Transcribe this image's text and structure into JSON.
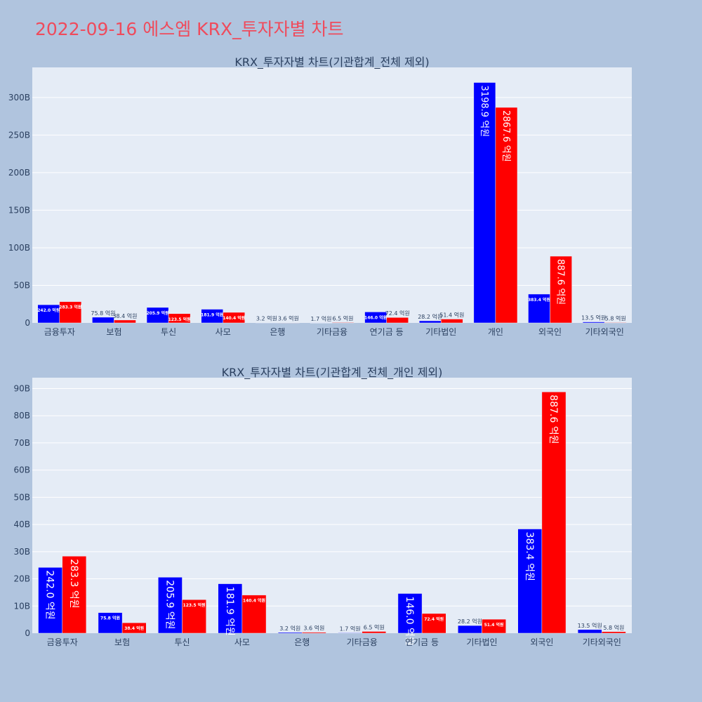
{
  "page": {
    "title": "2022-09-16 에스엠 KRX_투자자별 차트"
  },
  "chart_data": [
    {
      "type": "bar",
      "title": "KRX_투자자별 차트(기관합계_전체 제외)",
      "categories": [
        "금융투자",
        "보험",
        "투신",
        "사모",
        "은행",
        "기타금융",
        "연기금 등",
        "기타법인",
        "개인",
        "외국인",
        "기타외국인"
      ],
      "series": [
        {
          "color": "#0000ff",
          "values": [
            24.2,
            7.58,
            20.59,
            18.19,
            0.32,
            0.17,
            14.6,
            2.82,
            319.89,
            38.34,
            1.35
          ]
        },
        {
          "color": "#ff0000",
          "values": [
            28.33,
            3.84,
            12.35,
            14.04,
            0.36,
            0.65,
            7.24,
            5.14,
            286.76,
            88.76,
            0.58
          ]
        }
      ],
      "labels": [
        [
          "242.0 억원",
          "75.8 억원",
          "205.9 억원",
          "181.9 억원",
          "3.2 억원",
          "1.7 억원",
          "146.0 억원",
          "28.2 억원",
          "3198.9 억원",
          "383.4 억원",
          "13.5 억원"
        ],
        [
          "283.3 억원",
          "38.4 억원",
          "123.5 억원",
          "140.4 억원",
          "3.6 억원",
          "6.5 억원",
          "72.4 억원",
          "51.4 억원",
          "2867.6 억원",
          "887.6 억원",
          "5.8 억원"
        ]
      ],
      "ylim": [
        0,
        340
      ],
      "yticks": [
        0,
        50,
        100,
        150,
        200,
        250,
        300
      ],
      "ytick_labels": [
        "0",
        "50B",
        "100B",
        "150B",
        "200B",
        "250B",
        "300B"
      ],
      "grid": true
    },
    {
      "type": "bar",
      "title": "KRX_투자자별 차트(기관합계_전체_개인 제외)",
      "categories": [
        "금융투자",
        "보험",
        "투신",
        "사모",
        "은행",
        "기타금융",
        "연기금 등",
        "기타법인",
        "외국인",
        "기타외국인"
      ],
      "series": [
        {
          "color": "#0000ff",
          "values": [
            24.2,
            7.58,
            20.59,
            18.19,
            0.32,
            0.17,
            14.6,
            2.82,
            38.34,
            1.35
          ]
        },
        {
          "color": "#ff0000",
          "values": [
            28.33,
            3.84,
            12.35,
            14.04,
            0.36,
            0.65,
            7.24,
            5.14,
            88.76,
            0.58
          ]
        }
      ],
      "labels": [
        [
          "242.0 억원",
          "75.8 억원",
          "205.9 억원",
          "181.9 억원",
          "3.2 억원",
          "1.7 억원",
          "146.0 억원",
          "28.2 억원",
          "383.4 억원",
          "13.5 억원"
        ],
        [
          "283.3 억원",
          "38.4 억원",
          "123.5 억원",
          "140.4 억원",
          "3.6 억원",
          "6.5 억원",
          "72.4 억원",
          "51.4 억원",
          "887.6 억원",
          "5.8 억원"
        ]
      ],
      "ylim": [
        0,
        94
      ],
      "yticks": [
        0,
        10,
        20,
        30,
        40,
        50,
        60,
        70,
        80,
        90
      ],
      "ytick_labels": [
        "0",
        "10B",
        "20B",
        "30B",
        "40B",
        "50B",
        "60B",
        "70B",
        "80B",
        "90B"
      ],
      "grid": true
    }
  ]
}
